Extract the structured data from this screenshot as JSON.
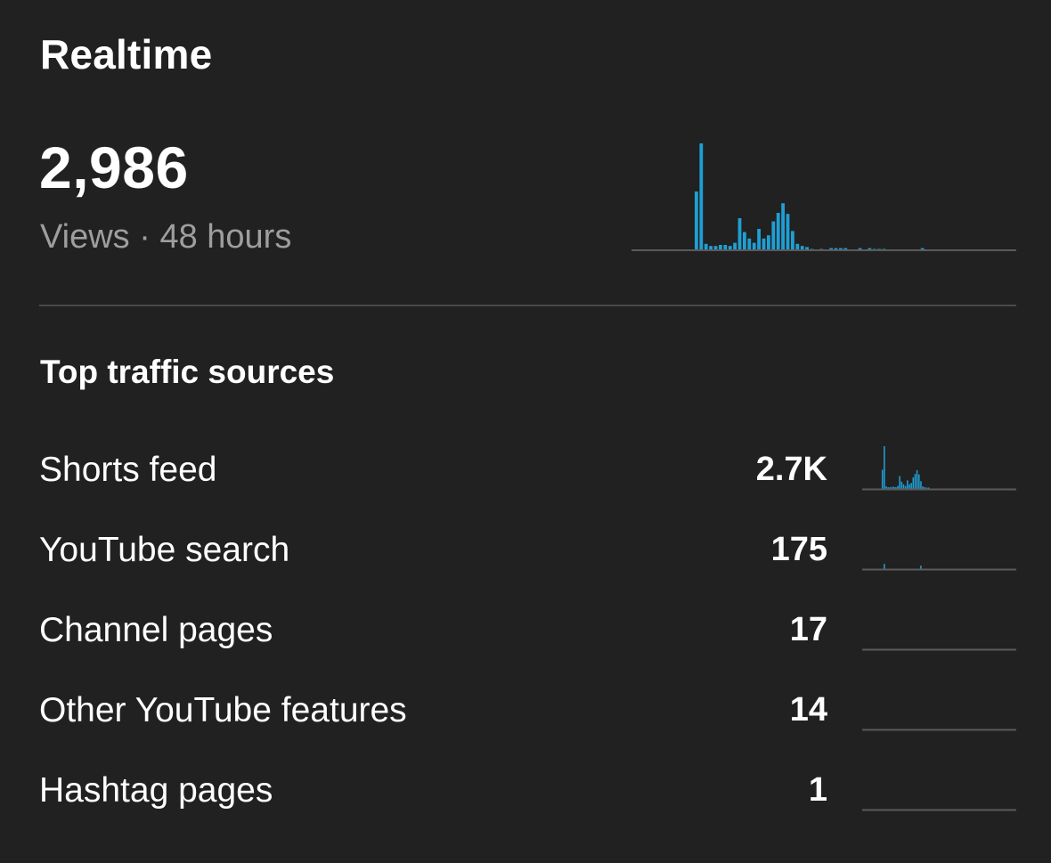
{
  "header": {
    "title": "Realtime",
    "views_total": "2,986",
    "views_label": "Views · 48 hours"
  },
  "main_chart": {
    "type": "bar",
    "series_color": "#1f9fd4",
    "values": [
      0,
      0,
      0,
      0,
      0,
      0,
      0,
      0,
      0,
      0,
      0,
      0,
      0,
      55,
      100,
      6,
      4,
      4,
      5,
      5,
      4,
      7,
      30,
      17,
      11,
      7,
      20,
      11,
      14,
      27,
      35,
      44,
      34,
      18,
      6,
      4,
      3,
      1,
      0,
      1,
      0,
      2,
      2,
      2,
      2,
      0,
      0,
      2,
      0,
      2,
      1,
      1,
      1,
      0,
      0,
      0,
      0,
      0,
      0,
      0,
      2,
      0,
      0,
      0,
      0,
      0,
      0,
      0,
      0,
      0,
      0,
      0,
      0,
      0,
      0,
      0,
      0,
      0,
      0,
      0
    ]
  },
  "traffic": {
    "title": "Top traffic sources",
    "sources": [
      {
        "label": "Shorts feed",
        "value": "2.7K",
        "spark": [
          0,
          0,
          0,
          0,
          0,
          0,
          0,
          0,
          0,
          0,
          45,
          100,
          6,
          4,
          4,
          5,
          5,
          4,
          7,
          30,
          17,
          11,
          7,
          20,
          11,
          14,
          27,
          35,
          44,
          34,
          18,
          6,
          4,
          3,
          1,
          0,
          0,
          0,
          0,
          0,
          0,
          0,
          0,
          0,
          0,
          0,
          0,
          0,
          0,
          0,
          0,
          0,
          0,
          0,
          0,
          0,
          0,
          0,
          0,
          0,
          0,
          0,
          0,
          0,
          0,
          0,
          0,
          0,
          0,
          0,
          0,
          0,
          0,
          0,
          0,
          0,
          0,
          0,
          0,
          0
        ]
      },
      {
        "label": "YouTube search",
        "value": "175",
        "spark": [
          0,
          0,
          0,
          0,
          0,
          0,
          0,
          0,
          0,
          0,
          0,
          12,
          0,
          0,
          0,
          0,
          0,
          0,
          0,
          0,
          0,
          0,
          0,
          0,
          0,
          0,
          0,
          0,
          0,
          0,
          8,
          0,
          0,
          0,
          0,
          0,
          0,
          0,
          0,
          0,
          0,
          0,
          0,
          0,
          0,
          0,
          0,
          0,
          0,
          0,
          0,
          0,
          0,
          0,
          0,
          0,
          0,
          0,
          0,
          0,
          0,
          0,
          0,
          0,
          0,
          0,
          0,
          0,
          0,
          0,
          0,
          0,
          0,
          0,
          0,
          0,
          0,
          0,
          0,
          0
        ]
      },
      {
        "label": "Channel pages",
        "value": "17",
        "spark": []
      },
      {
        "label": "Other YouTube features",
        "value": "14",
        "spark": []
      },
      {
        "label": "Hashtag pages",
        "value": "1",
        "spark": []
      }
    ]
  }
}
